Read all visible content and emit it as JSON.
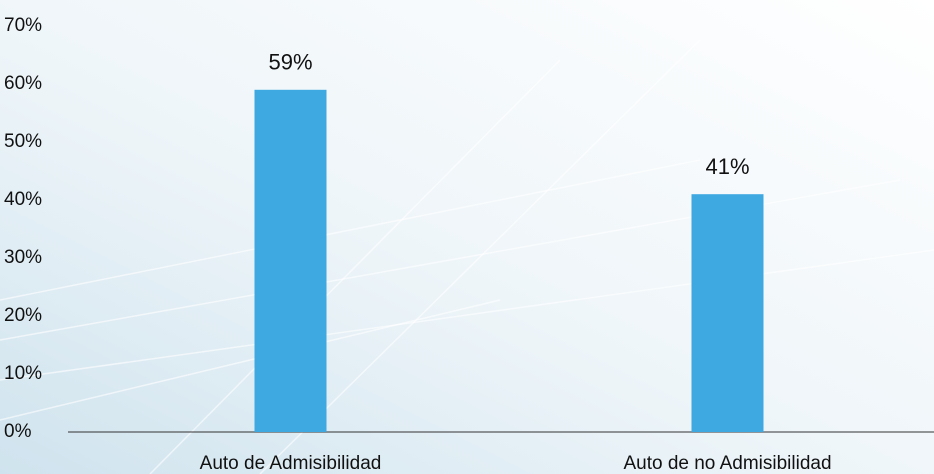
{
  "chart_data": {
    "type": "bar",
    "categories": [
      "Auto de Admisibilidad",
      "Auto de no Admisibilidad"
    ],
    "values": [
      59,
      41
    ],
    "value_labels": [
      "59%",
      "41%"
    ],
    "color": "#3ea8e0",
    "ylim": [
      0,
      70
    ],
    "yticks": [
      {
        "value": 0,
        "label": "0%"
      },
      {
        "value": 10,
        "label": "10%"
      },
      {
        "value": 20,
        "label": "20%"
      },
      {
        "value": 30,
        "label": "30%"
      },
      {
        "value": 40,
        "label": "40%"
      },
      {
        "value": 50,
        "label": "50%"
      },
      {
        "value": 60,
        "label": "60%"
      },
      {
        "value": 70,
        "label": "70%"
      }
    ]
  }
}
